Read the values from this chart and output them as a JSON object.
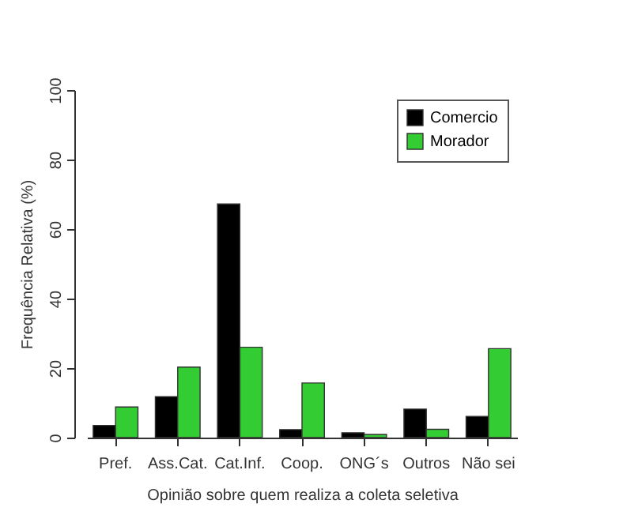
{
  "chart_data": {
    "type": "bar",
    "xlabel": "Opinião sobre quem realiza a coleta seletiva",
    "ylabel": "Frequência Relativa (%)",
    "categories": [
      "Pref.",
      "Ass.Cat.",
      "Cat.Inf.",
      "Coop.",
      "ONG´s",
      "Outros",
      "Não sei"
    ],
    "series": [
      {
        "name": "Comercio",
        "color": "#000000",
        "values": [
          3.5,
          11.8,
          67.2,
          2.3,
          1.4,
          8.2,
          6.1
        ]
      },
      {
        "name": "Morador",
        "color": "#33cc33",
        "values": [
          8.8,
          20.3,
          26.0,
          15.7,
          0.9,
          2.4,
          25.6
        ]
      }
    ],
    "ylim": [
      0,
      100
    ],
    "yticks": [
      0,
      20,
      40,
      60,
      80,
      100
    ],
    "grid": false,
    "legend": "top right"
  }
}
